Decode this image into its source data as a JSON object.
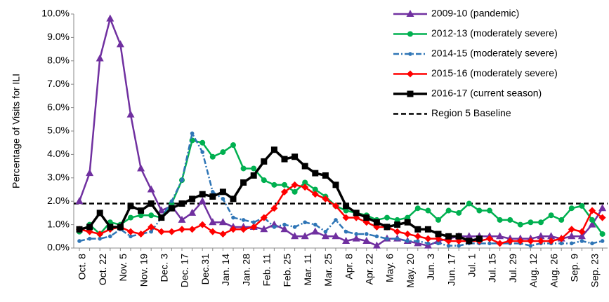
{
  "chart_data": {
    "type": "line",
    "ylabel": "Percentage of Visits for ILI",
    "categories": [
      "Oct. 8",
      null,
      "Oct. 22",
      null,
      "Nov. 5",
      null,
      "Nov. 19",
      null,
      "Dec. 3",
      null,
      "Dec. 17",
      null,
      "Dec.31",
      null,
      "Jan. 14",
      null,
      "Jan. 28",
      null,
      "Feb. 11",
      null,
      "Feb. 25",
      null,
      "Mar. 11",
      null,
      "Mar. 25",
      null,
      "Apr. 8",
      null,
      "Apr. 22",
      null,
      "May. 6",
      null,
      "May. 20",
      null,
      "Jun. 3",
      null,
      "Jun. 17",
      null,
      "Jul. 1",
      null,
      "Jul. 15",
      null,
      "Jul. 29",
      null,
      "Aug. 12",
      null,
      "Aug. 26",
      null,
      "Sep. 9",
      null,
      "Sep. 23",
      null
    ],
    "ylim": [
      0,
      10
    ],
    "yticks": [
      {
        "value": 0,
        "label": "0.0%"
      },
      {
        "value": 1,
        "label": "1.0%"
      },
      {
        "value": 2,
        "label": "2.0%"
      },
      {
        "value": 3,
        "label": "3.0%"
      },
      {
        "value": 4,
        "label": "4.0%"
      },
      {
        "value": 5,
        "label": "5.0%"
      },
      {
        "value": 6,
        "label": "6.0%"
      },
      {
        "value": 7,
        "label": "7.0%"
      },
      {
        "value": 8,
        "label": "8.0%"
      },
      {
        "value": 9,
        "label": "9.0%"
      },
      {
        "value": 10,
        "label": "10.0%"
      }
    ],
    "legend": "top-right",
    "series": [
      {
        "name": "2009-10 (pandemic)",
        "color": "#7030a0",
        "marker": "triangle",
        "line_style": "solid",
        "values": [
          2.0,
          3.2,
          8.1,
          9.8,
          8.7,
          5.7,
          3.4,
          2.5,
          1.6,
          1.8,
          1.2,
          1.5,
          2.0,
          1.1,
          1.1,
          0.9,
          0.9,
          0.9,
          0.8,
          1.0,
          0.8,
          0.5,
          0.5,
          0.7,
          0.5,
          0.5,
          0.3,
          0.4,
          0.3,
          0.1,
          0.4,
          0.4,
          0.3,
          0.2,
          0.1,
          0.3,
          0.4,
          0.5,
          0.5,
          0.5,
          0.5,
          0.5,
          0.4,
          0.4,
          0.4,
          0.5,
          0.5,
          0.4,
          0.5,
          0.5,
          1.0,
          1.7
        ]
      },
      {
        "name": "2012-13 (moderately severe)",
        "color": "#00b050",
        "marker": "circle",
        "line_style": "solid",
        "values": [
          0.7,
          1.0,
          0.6,
          1.1,
          1.0,
          1.3,
          1.4,
          1.4,
          1.3,
          1.9,
          2.9,
          4.6,
          4.5,
          3.9,
          4.1,
          4.4,
          3.4,
          3.4,
          2.9,
          2.7,
          2.7,
          2.4,
          2.8,
          2.5,
          2.2,
          1.8,
          1.6,
          1.5,
          1.4,
          1.2,
          1.3,
          1.2,
          1.3,
          1.7,
          1.6,
          1.2,
          1.6,
          1.5,
          1.9,
          1.6,
          1.6,
          1.2,
          1.2,
          1.0,
          1.1,
          1.1,
          1.4,
          1.2,
          1.7,
          1.8,
          1.2,
          0.6
        ]
      },
      {
        "name": "2014-15 (moderately severe)",
        "color": "#2e75b6",
        "marker": "small-circle",
        "line_style": "dashdot",
        "values": [
          0.3,
          0.4,
          0.4,
          0.5,
          0.8,
          0.5,
          0.6,
          0.7,
          1.3,
          2.0,
          2.9,
          4.9,
          4.1,
          2.4,
          2.1,
          1.3,
          1.2,
          1.1,
          1.3,
          0.9,
          1.0,
          0.9,
          1.1,
          1.0,
          0.7,
          1.2,
          0.7,
          0.6,
          0.6,
          0.5,
          0.4,
          0.4,
          0.3,
          0.3,
          0.2,
          0.2,
          0.1,
          0.1,
          0.2,
          0.2,
          0.2,
          0.2,
          0.2,
          0.2,
          0.1,
          0.2,
          0.2,
          0.2,
          0.2,
          0.3,
          0.2,
          0.3
        ]
      },
      {
        "name": "2015-16 (moderately severe)",
        "color": "#ff0000",
        "marker": "diamond",
        "line_style": "solid",
        "values": [
          0.8,
          0.7,
          0.6,
          0.8,
          0.9,
          0.7,
          0.6,
          0.9,
          0.7,
          0.7,
          0.8,
          0.8,
          1.0,
          0.7,
          0.6,
          0.8,
          0.8,
          0.9,
          1.3,
          1.7,
          2.4,
          2.7,
          2.6,
          2.3,
          2.1,
          1.8,
          1.3,
          1.3,
          1.1,
          0.9,
          0.9,
          0.7,
          0.6,
          0.5,
          0.4,
          0.4,
          0.3,
          0.3,
          0.3,
          0.3,
          0.4,
          0.2,
          0.3,
          0.3,
          0.3,
          0.3,
          0.3,
          0.4,
          0.8,
          0.7,
          1.6,
          1.3
        ]
      },
      {
        "name": "2016-17 (current season)",
        "color": "#000000",
        "marker": "square",
        "line_style": "solid",
        "values": [
          0.8,
          0.9,
          1.5,
          0.9,
          0.9,
          1.8,
          1.6,
          1.9,
          1.3,
          1.7,
          1.9,
          2.1,
          2.3,
          2.2,
          2.4,
          2.1,
          2.8,
          3.1,
          3.7,
          4.2,
          3.8,
          3.9,
          3.5,
          3.2,
          3.1,
          2.7,
          1.8,
          1.5,
          1.3,
          1.1,
          0.9,
          1.0,
          1.1,
          0.8,
          0.8,
          0.6,
          0.5,
          0.5,
          0.3,
          0.4,
          null,
          null,
          null,
          null,
          null,
          null,
          null,
          null,
          null,
          null,
          null,
          null
        ]
      }
    ],
    "baseline": {
      "name": "Region 5 Baseline",
      "value": 1.9,
      "color": "#000000"
    }
  }
}
